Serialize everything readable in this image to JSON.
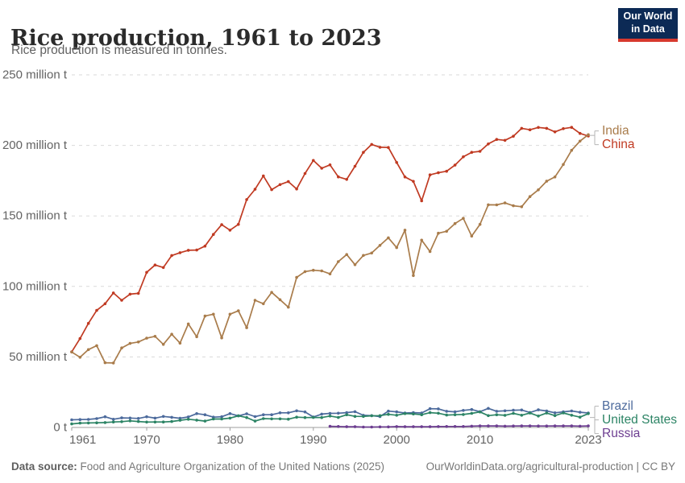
{
  "header": {
    "title": "Rice production, 1961 to 2023",
    "subtitle": "Rice production is measured in tonnes.",
    "logo": {
      "line1": "Our World",
      "line2": "in Data",
      "bg_color": "#0c2a55",
      "accent_color": "#d7392e"
    }
  },
  "footer": {
    "datasource_label": "Data source:",
    "datasource_text": " Food and Agriculture Organization of the United Nations (2025)",
    "link_text": "OurWorldinData.org/agricultural-production | CC BY"
  },
  "chart_data": {
    "type": "line",
    "title": "Rice production, 1961 to 2023",
    "subtitle": "Rice production is measured in tonnes.",
    "xlabel": "",
    "ylabel": "",
    "unit": "million tonnes",
    "xlim": [
      1961,
      2023
    ],
    "ylim": [
      0,
      250
    ],
    "grid": "horizontal-dashed",
    "legend_position": "right-edge-entity-labels",
    "xticks": [
      1961,
      1970,
      1980,
      1990,
      2000,
      2010,
      2023
    ],
    "yticks": [
      {
        "value": 0,
        "label": "0 t"
      },
      {
        "value": 50,
        "label": "50 million t"
      },
      {
        "value": 100,
        "label": "100 million t"
      },
      {
        "value": 150,
        "label": "150 million t"
      },
      {
        "value": 200,
        "label": "200 million t"
      },
      {
        "value": 250,
        "label": "250 million t"
      }
    ],
    "x": [
      1961,
      1962,
      1963,
      1964,
      1965,
      1966,
      1967,
      1968,
      1969,
      1970,
      1971,
      1972,
      1973,
      1974,
      1975,
      1976,
      1977,
      1978,
      1979,
      1980,
      1981,
      1982,
      1983,
      1984,
      1985,
      1986,
      1987,
      1988,
      1989,
      1990,
      1991,
      1992,
      1993,
      1994,
      1995,
      1996,
      1997,
      1998,
      1999,
      2000,
      2001,
      2002,
      2003,
      2004,
      2005,
      2006,
      2007,
      2008,
      2009,
      2010,
      2011,
      2012,
      2013,
      2014,
      2015,
      2016,
      2017,
      2018,
      2019,
      2020,
      2021,
      2022,
      2023
    ],
    "series": [
      {
        "name": "China",
        "color": "#c03a22",
        "values": [
          53.6,
          63.0,
          73.8,
          83.0,
          87.7,
          95.4,
          90.2,
          94.5,
          95.1,
          110.0,
          115.2,
          113.4,
          121.9,
          123.9,
          125.6,
          125.8,
          128.6,
          136.9,
          143.8,
          139.9,
          144.0,
          161.6,
          168.9,
          178.3,
          168.6,
          172.2,
          174.3,
          169.1,
          180.1,
          189.3,
          183.8,
          186.2,
          177.7,
          175.9,
          185.2,
          195.1,
          200.7,
          198.7,
          198.5,
          187.9,
          177.6,
          174.5,
          160.7,
          179.1,
          180.6,
          181.7,
          186.0,
          191.9,
          195.1,
          195.8,
          201.0,
          204.2,
          203.6,
          206.5,
          212.1,
          211.1,
          212.7,
          212.1,
          209.6,
          211.9,
          212.8,
          208.5,
          206.6
        ]
      },
      {
        "name": "India",
        "color": "#a97c4b",
        "values": [
          53.5,
          49.8,
          55.2,
          58.0,
          45.9,
          45.7,
          56.4,
          59.6,
          60.6,
          63.3,
          64.6,
          58.9,
          66.1,
          59.8,
          73.4,
          64.3,
          79.0,
          80.3,
          63.5,
          80.3,
          82.7,
          70.7,
          90.2,
          87.7,
          95.8,
          90.6,
          85.3,
          106.4,
          110.5,
          111.5,
          111.0,
          108.9,
          117.6,
          122.6,
          115.4,
          122.0,
          123.7,
          129.1,
          134.5,
          127.5,
          139.9,
          107.7,
          132.8,
          124.7,
          137.7,
          139.1,
          144.6,
          148.3,
          135.7,
          144.0,
          157.9,
          157.8,
          159.2,
          157.2,
          156.5,
          163.7,
          168.5,
          174.6,
          177.6,
          186.5,
          196.5,
          203.0,
          207.6
        ]
      },
      {
        "name": "Brazil",
        "color": "#4c6a9c",
        "values": [
          5.4,
          5.6,
          5.7,
          6.3,
          7.6,
          5.8,
          6.8,
          6.7,
          6.4,
          7.6,
          6.6,
          7.8,
          7.2,
          6.5,
          7.5,
          9.8,
          9.0,
          7.3,
          7.6,
          9.8,
          8.2,
          9.7,
          7.7,
          9.0,
          9.0,
          10.4,
          10.4,
          11.8,
          11.0,
          7.4,
          9.5,
          10.0,
          10.1,
          10.5,
          11.2,
          8.6,
          8.4,
          7.7,
          11.6,
          11.1,
          10.2,
          10.5,
          10.3,
          13.3,
          13.2,
          11.5,
          11.1,
          12.1,
          12.7,
          11.2,
          13.5,
          11.5,
          11.8,
          12.2,
          12.4,
          10.6,
          12.5,
          11.7,
          10.4,
          11.1,
          11.7,
          10.8,
          10.3
        ]
      },
      {
        "name": "United States",
        "color": "#2c8465",
        "values": [
          2.5,
          3.1,
          3.2,
          3.3,
          3.5,
          3.9,
          4.1,
          4.7,
          4.2,
          3.8,
          3.9,
          3.9,
          4.2,
          5.1,
          5.8,
          5.2,
          4.5,
          6.0,
          6.0,
          6.6,
          8.3,
          7.0,
          4.5,
          6.3,
          6.1,
          6.1,
          5.9,
          7.3,
          7.0,
          7.1,
          7.0,
          8.1,
          7.1,
          9.0,
          7.9,
          7.8,
          8.3,
          8.4,
          9.3,
          8.7,
          9.8,
          9.6,
          9.0,
          10.5,
          10.1,
          8.8,
          9.0,
          9.2,
          10.0,
          11.0,
          8.4,
          9.0,
          8.6,
          10.0,
          8.7,
          10.2,
          8.1,
          10.2,
          8.4,
          10.3,
          8.7,
          7.3,
          9.8
        ]
      },
      {
        "name": "Russia",
        "color": "#6d3e91",
        "values": [
          null,
          null,
          null,
          null,
          null,
          null,
          null,
          null,
          null,
          null,
          null,
          null,
          null,
          null,
          null,
          null,
          null,
          null,
          null,
          null,
          null,
          null,
          null,
          null,
          null,
          null,
          null,
          null,
          null,
          null,
          null,
          0.8,
          0.7,
          0.5,
          0.5,
          0.3,
          0.3,
          0.4,
          0.4,
          0.6,
          0.5,
          0.5,
          0.5,
          0.5,
          0.6,
          0.7,
          0.7,
          0.7,
          0.9,
          1.1,
          1.1,
          1.1,
          0.9,
          1.0,
          1.1,
          1.1,
          1.0,
          1.0,
          1.1,
          1.1,
          1.1,
          0.9,
          1.1
        ]
      }
    ]
  }
}
